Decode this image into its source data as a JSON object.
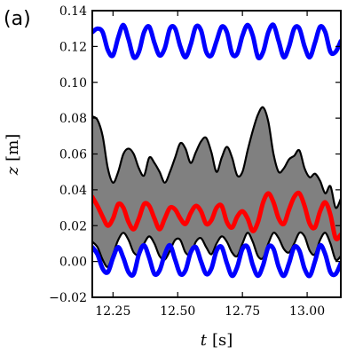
{
  "chart_data": {
    "type": "line",
    "panel_label": "(a)",
    "xlabel_var": "t",
    "xlabel_unit": "[s]",
    "ylabel_var": "z",
    "ylabel_unit": "[m]",
    "xlim": [
      12.17,
      13.13
    ],
    "ylim": [
      -0.02,
      0.14
    ],
    "xticks": [
      12.25,
      12.5,
      12.75,
      13.0
    ],
    "xtick_labels": [
      "12.25",
      "12.50",
      "12.75",
      "13.00"
    ],
    "yticks": [
      -0.02,
      0.0,
      0.02,
      0.04,
      0.06,
      0.08,
      0.1,
      0.12,
      0.14
    ],
    "ytick_labels": [
      "−0.02",
      "0.00",
      "0.02",
      "0.04",
      "0.06",
      "0.08",
      "0.10",
      "0.12",
      "0.14"
    ],
    "grid": false,
    "colors": {
      "band_fill": "#808080",
      "band_edge": "#000000",
      "oscillation": "#0000ff",
      "mean": "#ff0000"
    },
    "upper_oscillation": {
      "x": [
        12.17,
        12.19,
        12.21,
        12.23,
        12.25,
        12.27,
        12.29,
        12.31,
        12.33,
        12.35,
        12.37,
        12.39,
        12.41,
        12.43,
        12.45,
        12.47,
        12.49,
        12.51,
        12.53,
        12.55,
        12.57,
        12.59,
        12.61,
        12.63,
        12.65,
        12.67,
        12.69,
        12.71,
        12.73,
        12.75,
        12.77,
        12.79,
        12.81,
        12.83,
        12.85,
        12.87,
        12.89,
        12.91,
        12.93,
        12.95,
        12.97,
        12.99,
        13.01,
        13.03,
        13.05,
        13.07,
        13.09,
        13.11,
        13.13
      ],
      "y": [
        0.128,
        0.13,
        0.128,
        0.118,
        0.115,
        0.125,
        0.132,
        0.124,
        0.114,
        0.117,
        0.128,
        0.131,
        0.122,
        0.115,
        0.119,
        0.13,
        0.13,
        0.12,
        0.114,
        0.121,
        0.131,
        0.129,
        0.117,
        0.115,
        0.123,
        0.131,
        0.128,
        0.116,
        0.116,
        0.126,
        0.132,
        0.126,
        0.114,
        0.117,
        0.128,
        0.132,
        0.123,
        0.114,
        0.12,
        0.13,
        0.13,
        0.12,
        0.114,
        0.122,
        0.131,
        0.128,
        0.117,
        0.117,
        0.123
      ]
    },
    "lower_oscillation": {
      "x": [
        12.17,
        12.19,
        12.21,
        12.23,
        12.25,
        12.27,
        12.29,
        12.31,
        12.33,
        12.35,
        12.37,
        12.39,
        12.41,
        12.43,
        12.45,
        12.47,
        12.49,
        12.51,
        12.53,
        12.55,
        12.57,
        12.59,
        12.61,
        12.63,
        12.65,
        12.67,
        12.69,
        12.71,
        12.73,
        12.75,
        12.77,
        12.79,
        12.81,
        12.83,
        12.85,
        12.87,
        12.89,
        12.91,
        12.93,
        12.95,
        12.97,
        12.99,
        13.01,
        13.03,
        13.05,
        13.07,
        13.09,
        13.11,
        13.13
      ],
      "y": [
        0.008,
        0.004,
        -0.004,
        -0.006,
        0.002,
        0.008,
        0.002,
        -0.006,
        -0.007,
        0.004,
        0.009,
        0.002,
        -0.007,
        -0.005,
        0.004,
        0.009,
        0.001,
        -0.007,
        -0.005,
        0.005,
        0.008,
        0.0,
        -0.007,
        -0.004,
        0.006,
        0.008,
        -0.001,
        -0.008,
        -0.003,
        0.007,
        0.008,
        -0.002,
        -0.008,
        -0.002,
        0.008,
        0.007,
        -0.003,
        -0.008,
        -0.001,
        0.008,
        0.006,
        -0.004,
        -0.008,
        0.0,
        0.009,
        0.004,
        -0.006,
        -0.007,
        -0.001
      ]
    },
    "mean_line": {
      "x": [
        12.17,
        12.19,
        12.21,
        12.23,
        12.25,
        12.27,
        12.29,
        12.31,
        12.33,
        12.35,
        12.37,
        12.39,
        12.41,
        12.43,
        12.45,
        12.47,
        12.49,
        12.51,
        12.53,
        12.55,
        12.57,
        12.59,
        12.61,
        12.63,
        12.65,
        12.67,
        12.69,
        12.71,
        12.73,
        12.75,
        12.77,
        12.79,
        12.81,
        12.83,
        12.85,
        12.87,
        12.89,
        12.91,
        12.93,
        12.95,
        12.97,
        12.99,
        13.01,
        13.03,
        13.05,
        13.07,
        13.09,
        13.11,
        13.13
      ],
      "y": [
        0.036,
        0.031,
        0.025,
        0.02,
        0.024,
        0.032,
        0.03,
        0.022,
        0.018,
        0.024,
        0.032,
        0.031,
        0.024,
        0.018,
        0.024,
        0.03,
        0.029,
        0.024,
        0.021,
        0.027,
        0.031,
        0.028,
        0.021,
        0.023,
        0.03,
        0.031,
        0.022,
        0.019,
        0.025,
        0.028,
        0.024,
        0.017,
        0.022,
        0.033,
        0.038,
        0.033,
        0.024,
        0.021,
        0.029,
        0.036,
        0.038,
        0.031,
        0.021,
        0.019,
        0.028,
        0.033,
        0.026,
        0.013,
        0.015
      ]
    },
    "band_upper": {
      "x": [
        12.17,
        12.19,
        12.21,
        12.23,
        12.25,
        12.27,
        12.29,
        12.31,
        12.33,
        12.35,
        12.37,
        12.39,
        12.41,
        12.43,
        12.45,
        12.47,
        12.49,
        12.51,
        12.53,
        12.55,
        12.57,
        12.59,
        12.61,
        12.63,
        12.65,
        12.67,
        12.69,
        12.71,
        12.73,
        12.75,
        12.77,
        12.79,
        12.81,
        12.83,
        12.85,
        12.87,
        12.89,
        12.91,
        12.93,
        12.95,
        12.97,
        12.99,
        13.01,
        13.03,
        13.05,
        13.07,
        13.09,
        13.11,
        13.13
      ],
      "y": [
        0.081,
        0.079,
        0.07,
        0.052,
        0.044,
        0.05,
        0.06,
        0.063,
        0.06,
        0.052,
        0.048,
        0.058,
        0.055,
        0.05,
        0.044,
        0.05,
        0.058,
        0.066,
        0.063,
        0.055,
        0.061,
        0.067,
        0.069,
        0.061,
        0.05,
        0.058,
        0.064,
        0.058,
        0.048,
        0.05,
        0.062,
        0.073,
        0.082,
        0.086,
        0.078,
        0.06,
        0.05,
        0.052,
        0.057,
        0.059,
        0.062,
        0.052,
        0.047,
        0.049,
        0.045,
        0.038,
        0.042,
        0.03,
        0.035
      ]
    },
    "band_lower": {
      "x": [
        12.17,
        12.19,
        12.21,
        12.23,
        12.25,
        12.27,
        12.29,
        12.31,
        12.33,
        12.35,
        12.37,
        12.39,
        12.41,
        12.43,
        12.45,
        12.47,
        12.49,
        12.51,
        12.53,
        12.55,
        12.57,
        12.59,
        12.61,
        12.63,
        12.65,
        12.67,
        12.69,
        12.71,
        12.73,
        12.75,
        12.77,
        12.79,
        12.81,
        12.83,
        12.85,
        12.87,
        12.89,
        12.91,
        12.93,
        12.95,
        12.97,
        12.99,
        13.01,
        13.03,
        13.05,
        13.07,
        13.09,
        13.11,
        13.13
      ],
      "y": [
        0.011,
        0.008,
        0.001,
        -0.003,
        0.004,
        0.012,
        0.016,
        0.012,
        0.005,
        0.004,
        0.01,
        0.014,
        0.01,
        0.003,
        0.001,
        0.006,
        0.012,
        0.012,
        0.005,
        0.004,
        0.011,
        0.013,
        0.008,
        0.004,
        0.01,
        0.014,
        0.011,
        0.005,
        0.003,
        0.01,
        0.016,
        0.011,
        0.003,
        0.002,
        0.01,
        0.016,
        0.013,
        0.007,
        0.005,
        0.01,
        0.016,
        0.014,
        0.006,
        0.004,
        0.012,
        0.016,
        0.01,
        0.001,
        0.003
      ]
    }
  }
}
